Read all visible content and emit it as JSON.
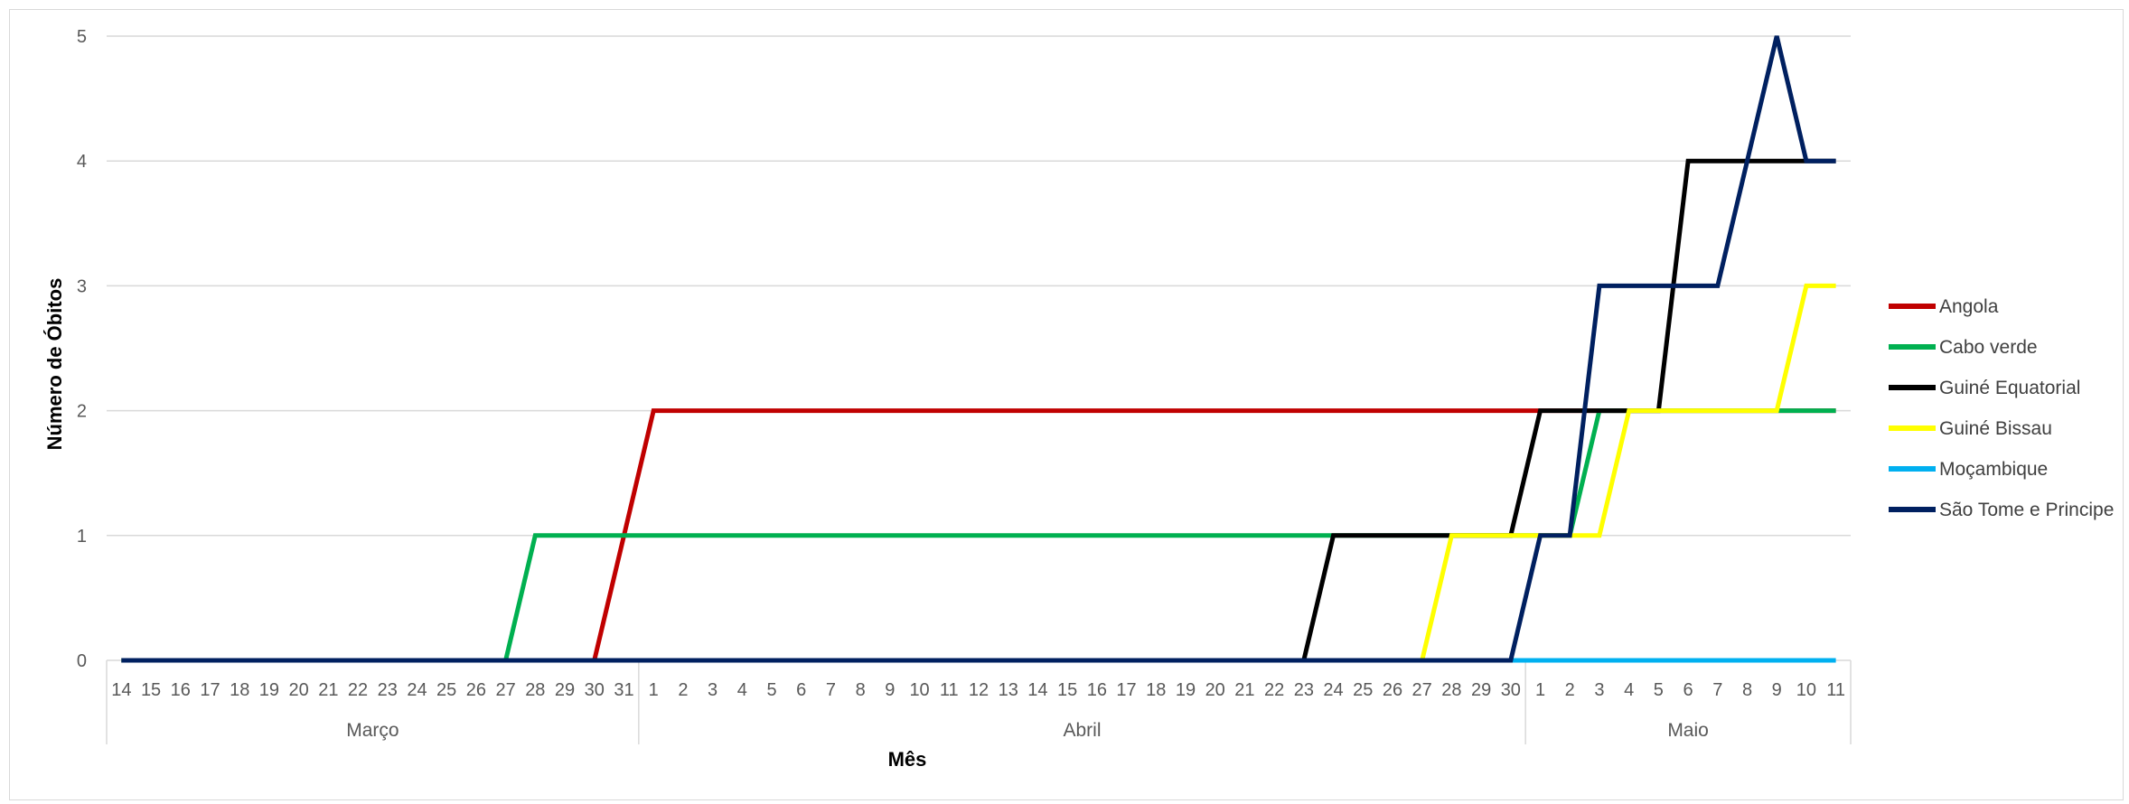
{
  "chart_data": {
    "type": "line",
    "title": "",
    "xlabel": "Mês",
    "ylabel": "Número de Óbitos",
    "ylim": [
      0,
      5
    ],
    "yticks": [
      0,
      1,
      2,
      3,
      4,
      5
    ],
    "grid": true,
    "legend": "right",
    "groups": [
      {
        "name": "Março",
        "days": [
          "14",
          "15",
          "16",
          "17",
          "18",
          "19",
          "20",
          "21",
          "22",
          "23",
          "24",
          "25",
          "26",
          "27",
          "28",
          "29",
          "30",
          "31"
        ]
      },
      {
        "name": "Abril",
        "days": [
          "1",
          "2",
          "3",
          "4",
          "5",
          "6",
          "7",
          "8",
          "9",
          "10",
          "11",
          "12",
          "13",
          "14",
          "15",
          "16",
          "17",
          "18",
          "19",
          "20",
          "21",
          "22",
          "23",
          "24",
          "25",
          "26",
          "27",
          "28",
          "29",
          "30"
        ]
      },
      {
        "name": "Maio",
        "days": [
          "1",
          "2",
          "3",
          "4",
          "5",
          "6",
          "7",
          "8",
          "9",
          "10",
          "11"
        ]
      }
    ],
    "series": [
      {
        "name": "Angola",
        "color": "#c00000",
        "values": [
          0,
          0,
          0,
          0,
          0,
          0,
          0,
          0,
          0,
          0,
          0,
          0,
          0,
          0,
          0,
          0,
          0,
          1,
          2,
          2,
          2,
          2,
          2,
          2,
          2,
          2,
          2,
          2,
          2,
          2,
          2,
          2,
          2,
          2,
          2,
          2,
          2,
          2,
          2,
          2,
          2,
          2,
          2,
          2,
          2,
          2,
          2,
          2,
          2,
          2,
          2,
          2,
          2,
          2,
          2,
          2,
          2,
          2,
          2
        ]
      },
      {
        "name": "Cabo verde",
        "color": "#00b050",
        "values": [
          0,
          0,
          0,
          0,
          0,
          0,
          0,
          0,
          0,
          0,
          0,
          0,
          0,
          0,
          1,
          1,
          1,
          1,
          1,
          1,
          1,
          1,
          1,
          1,
          1,
          1,
          1,
          1,
          1,
          1,
          1,
          1,
          1,
          1,
          1,
          1,
          1,
          1,
          1,
          1,
          1,
          1,
          1,
          1,
          1,
          1,
          1,
          1,
          1,
          1,
          2,
          2,
          2,
          2,
          2,
          2,
          2,
          2,
          2
        ]
      },
      {
        "name": "Guiné Equatorial",
        "color": "#000000",
        "values": [
          0,
          0,
          0,
          0,
          0,
          0,
          0,
          0,
          0,
          0,
          0,
          0,
          0,
          0,
          0,
          0,
          0,
          0,
          0,
          0,
          0,
          0,
          0,
          0,
          0,
          0,
          0,
          0,
          0,
          0,
          0,
          0,
          0,
          0,
          0,
          0,
          0,
          0,
          0,
          0,
          0,
          1,
          1,
          1,
          1,
          1,
          1,
          1,
          2,
          2,
          2,
          2,
          2,
          4,
          4,
          4,
          4,
          4,
          4
        ]
      },
      {
        "name": "Guiné Bissau",
        "color": "#ffff00",
        "values": [
          0,
          0,
          0,
          0,
          0,
          0,
          0,
          0,
          0,
          0,
          0,
          0,
          0,
          0,
          0,
          0,
          0,
          0,
          0,
          0,
          0,
          0,
          0,
          0,
          0,
          0,
          0,
          0,
          0,
          0,
          0,
          0,
          0,
          0,
          0,
          0,
          0,
          0,
          0,
          0,
          0,
          0,
          0,
          0,
          0,
          1,
          1,
          1,
          1,
          1,
          1,
          2,
          2,
          2,
          2,
          2,
          2,
          3,
          3
        ]
      },
      {
        "name": "Moçambique",
        "color": "#00b0f0",
        "values": [
          0,
          0,
          0,
          0,
          0,
          0,
          0,
          0,
          0,
          0,
          0,
          0,
          0,
          0,
          0,
          0,
          0,
          0,
          0,
          0,
          0,
          0,
          0,
          0,
          0,
          0,
          0,
          0,
          0,
          0,
          0,
          0,
          0,
          0,
          0,
          0,
          0,
          0,
          0,
          0,
          0,
          0,
          0,
          0,
          0,
          0,
          0,
          0,
          0,
          0,
          0,
          0,
          0,
          0,
          0,
          0,
          0,
          0,
          0
        ]
      },
      {
        "name": "São Tome e Principe",
        "color": "#002060",
        "values": [
          0,
          0,
          0,
          0,
          0,
          0,
          0,
          0,
          0,
          0,
          0,
          0,
          0,
          0,
          0,
          0,
          0,
          0,
          0,
          0,
          0,
          0,
          0,
          0,
          0,
          0,
          0,
          0,
          0,
          0,
          0,
          0,
          0,
          0,
          0,
          0,
          0,
          0,
          0,
          0,
          0,
          0,
          0,
          0,
          0,
          0,
          0,
          0,
          1,
          1,
          3,
          3,
          3,
          3,
          3,
          4,
          5,
          4,
          4
        ]
      }
    ]
  }
}
